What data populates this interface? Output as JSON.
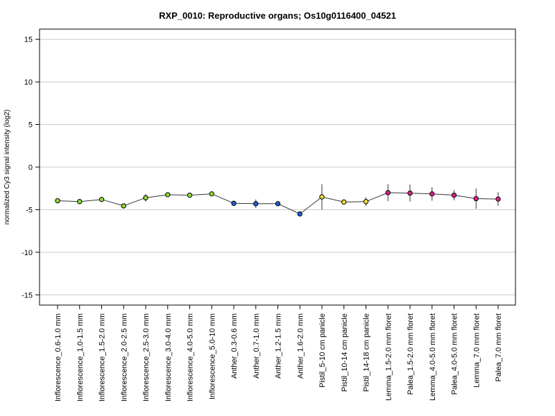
{
  "chart_data": {
    "type": "line",
    "title": "RXP_0010: Reproductive organs; Os10g0116400_04521",
    "xlabel": "",
    "ylabel": "normalized Cy3 signal intensity (log2)",
    "ylim": [
      -16.2,
      16.2
    ],
    "yticks": [
      -15,
      -10,
      -5,
      0,
      5,
      10,
      15
    ],
    "grid": true,
    "categories": [
      "Inflorescence_0.6-1.0 mm",
      "Inflorescence_1.0-1.5 mm",
      "Inflorescence_1.5-2.0 mm",
      "Inflorescence_2.0-2.5 mm",
      "Inflorescence_2.5-3.0 mm",
      "Inflorescence_3.0-4.0 mm",
      "Inflorescence_4.0-5.0 mm",
      "Inflorescence_5.0-10 mm",
      "Anther_0.3-0.6 mm",
      "Anther_0.7-1.0 mm",
      "Anther_1.2-1.5 mm",
      "Anther_1.6-2.0 mm",
      "Pistil_5-10 cm panicle",
      "Pistil_10-14 cm panicle",
      "Pistil_14-18 cm panicle",
      "Lemma_1.5-2.0 mm floret",
      "Palea_1.5-2.0 mm floret",
      "Lemma_4.0-5.0 mm floret",
      "Palea_4.0-5.0 mm floret",
      "Lemma_7.0 mm floret",
      "Palea_7.0 mm floret"
    ],
    "values": [
      -3.95,
      -4.05,
      -3.8,
      -4.55,
      -3.6,
      -3.25,
      -3.3,
      -3.15,
      -4.25,
      -4.3,
      -4.3,
      -5.5,
      -3.5,
      -4.1,
      -4.05,
      -3.0,
      -3.05,
      -3.15,
      -3.3,
      -3.7,
      -3.75
    ],
    "errors": [
      0.05,
      0.1,
      0.15,
      0.1,
      0.45,
      0.2,
      0.1,
      0.15,
      0.3,
      0.5,
      0.15,
      0.1,
      1.5,
      0.2,
      0.5,
      1.0,
      1.0,
      0.8,
      0.6,
      1.2,
      0.8
    ],
    "point_colors": [
      "#8fd93a",
      "#8fd93a",
      "#8fd93a",
      "#8fd93a",
      "#8fd93a",
      "#8fd93a",
      "#8fd93a",
      "#8fd93a",
      "#1f5fd6",
      "#1f5fd6",
      "#1f5fd6",
      "#1f5fd6",
      "#f0dd3c",
      "#f0dd3c",
      "#f0dd3c",
      "#e0208a",
      "#e0208a",
      "#e0208a",
      "#e0208a",
      "#e0208a",
      "#e0208a"
    ]
  }
}
